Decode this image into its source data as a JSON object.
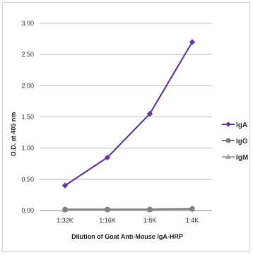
{
  "chart_data": {
    "type": "line",
    "title": "",
    "xlabel": "Dilution of Goat Anti-Mouse IgA-HRP",
    "ylabel": "O.D. at 405 nm",
    "categories": [
      "1:32K",
      "1:16K",
      "1:8K",
      "1:4K"
    ],
    "y_ticks": [
      "0.00",
      "0.50",
      "1.00",
      "1.50",
      "2.00",
      "2.50",
      "3.00"
    ],
    "ylim": [
      0,
      3
    ],
    "grid": "horizontal",
    "legend_position": "right",
    "series": [
      {
        "name": "IgA",
        "values": [
          0.4,
          0.85,
          1.55,
          2.7
        ],
        "color": "#6a3d9a",
        "marker": "diamond"
      },
      {
        "name": "IgG",
        "values": [
          0.02,
          0.02,
          0.02,
          0.03
        ],
        "color": "#808080",
        "marker": "circle"
      },
      {
        "name": "IgM",
        "values": [
          0.01,
          0.01,
          0.01,
          0.02
        ],
        "color": "#a0a0a0",
        "marker": "triangle"
      }
    ]
  }
}
